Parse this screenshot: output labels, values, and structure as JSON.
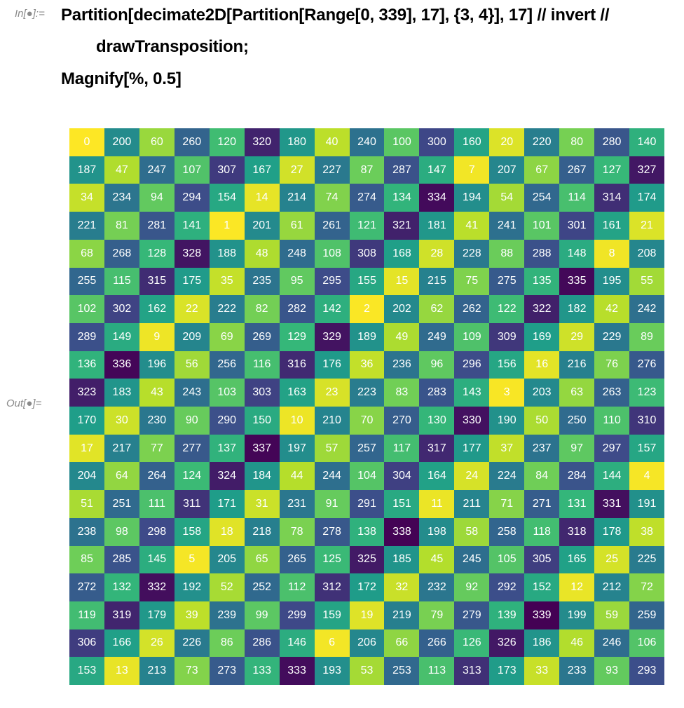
{
  "input": {
    "label": "In[●]:=",
    "line1": "Partition[decimate2D[Partition[Range[0, 339], 17], {3, 4}], 17] // invert //",
    "line2": "drawTransposition;",
    "line3": "Magnify[%, 0.5]"
  },
  "output": {
    "label": "Out[●]=",
    "max_value": 339,
    "grid": [
      [
        0,
        200,
        60,
        260,
        120,
        320,
        180,
        40,
        240,
        100,
        300,
        160,
        20,
        220,
        80,
        280,
        140
      ],
      [
        187,
        47,
        247,
        107,
        307,
        167,
        27,
        227,
        87,
        287,
        147,
        7,
        207,
        67,
        267,
        127,
        327
      ],
      [
        34,
        234,
        94,
        294,
        154,
        14,
        214,
        74,
        274,
        134,
        334,
        194,
        54,
        254,
        114,
        314,
        174
      ],
      [
        221,
        81,
        281,
        141,
        1,
        201,
        61,
        261,
        121,
        321,
        181,
        41,
        241,
        101,
        301,
        161,
        21
      ],
      [
        68,
        268,
        128,
        328,
        188,
        48,
        248,
        108,
        308,
        168,
        28,
        228,
        88,
        288,
        148,
        8,
        208
      ],
      [
        255,
        115,
        315,
        175,
        35,
        235,
        95,
        295,
        155,
        15,
        215,
        75,
        275,
        135,
        335,
        195,
        55
      ],
      [
        102,
        302,
        162,
        22,
        222,
        82,
        282,
        142,
        2,
        202,
        62,
        262,
        122,
        322,
        182,
        42,
        242
      ],
      [
        289,
        149,
        9,
        209,
        69,
        269,
        129,
        329,
        189,
        49,
        249,
        109,
        309,
        169,
        29,
        229,
        89
      ],
      [
        136,
        336,
        196,
        56,
        256,
        116,
        316,
        176,
        36,
        236,
        96,
        296,
        156,
        16,
        216,
        76,
        276
      ],
      [
        323,
        183,
        43,
        243,
        103,
        303,
        163,
        23,
        223,
        83,
        283,
        143,
        3,
        203,
        63,
        263,
        123
      ],
      [
        170,
        30,
        230,
        90,
        290,
        150,
        10,
        210,
        70,
        270,
        130,
        330,
        190,
        50,
        250,
        110,
        310
      ],
      [
        17,
        217,
        77,
        277,
        137,
        337,
        197,
        57,
        257,
        117,
        317,
        177,
        37,
        237,
        97,
        297,
        157
      ],
      [
        204,
        64,
        264,
        124,
        324,
        184,
        44,
        244,
        104,
        304,
        164,
        24,
        224,
        84,
        284,
        144,
        4
      ],
      [
        51,
        251,
        111,
        311,
        171,
        31,
        231,
        91,
        291,
        151,
        11,
        211,
        71,
        271,
        131,
        331,
        191
      ],
      [
        238,
        98,
        298,
        158,
        18,
        218,
        78,
        278,
        138,
        338,
        198,
        58,
        258,
        118,
        318,
        178,
        38
      ],
      [
        85,
        285,
        145,
        5,
        205,
        65,
        265,
        125,
        325,
        185,
        45,
        245,
        105,
        305,
        165,
        25,
        225
      ],
      [
        272,
        132,
        332,
        192,
        52,
        252,
        112,
        312,
        172,
        32,
        232,
        92,
        292,
        152,
        12,
        212,
        72
      ],
      [
        119,
        319,
        179,
        39,
        239,
        99,
        299,
        159,
        19,
        219,
        79,
        279,
        139,
        339,
        199,
        59,
        259
      ],
      [
        306,
        166,
        26,
        226,
        86,
        286,
        146,
        6,
        206,
        66,
        266,
        126,
        326,
        186,
        46,
        246,
        106
      ],
      [
        153,
        13,
        213,
        73,
        273,
        133,
        333,
        193,
        53,
        253,
        113,
        313,
        173,
        33,
        233,
        93,
        293
      ]
    ]
  }
}
